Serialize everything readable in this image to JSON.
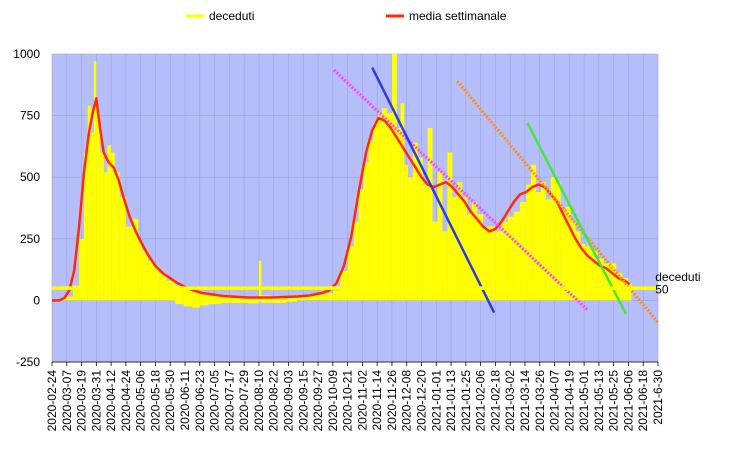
{
  "chart_data": {
    "type": "line",
    "title": "",
    "xlabel": "",
    "ylabel": "",
    "ylim": [
      -250,
      1000
    ],
    "yticks": [
      1000,
      750,
      500,
      250,
      0,
      -250
    ],
    "xlim": [
      "2020-02-24",
      "2021-06-30"
    ],
    "xticks": [
      "2020-02-24",
      "2020-03-07",
      "2020-03-19",
      "2020-03-31",
      "2020-04-12",
      "2020-04-24",
      "2020-05-06",
      "2020-05-18",
      "2020-05-30",
      "2020-06-11",
      "2020-06-23",
      "2020-07-05",
      "2020-07-17",
      "2020-07-29",
      "2020-08-10",
      "2020-08-22",
      "2020-09-03",
      "2020-09-15",
      "2020-09-27",
      "2020-10-09",
      "2020-10-21",
      "2020-11-02",
      "2020-11-14",
      "2020-11-26",
      "2020-12-08",
      "2020-12-20",
      "2021-01-01",
      "2021-01-13",
      "2021-01-25",
      "2021-02-06",
      "2021-02-18",
      "2021-03-02",
      "2021-03-14",
      "2021-03-26",
      "2021-04-07",
      "2021-04-19",
      "2021-05-01",
      "2021-05-13",
      "2021-05-25",
      "2021-06-06",
      "2021-06-18",
      "2021-6-30"
    ],
    "plot_background": "#b6bef9",
    "grid": true,
    "legend_position": "top",
    "legend": [
      {
        "name": "deceduti",
        "color": "#ffff00"
      },
      {
        "name": "media settimanale",
        "color": "#ff2a0a"
      }
    ],
    "series": [
      {
        "name": "deceduti",
        "color": "#ffff00",
        "style": "bars",
        "x": [
          "2020-02-24",
          "2020-03-02",
          "2020-03-07",
          "2020-03-12",
          "2020-03-17",
          "2020-03-21",
          "2020-03-24",
          "2020-03-27",
          "2020-03-29",
          "2020-03-31",
          "2020-04-03",
          "2020-04-06",
          "2020-04-09",
          "2020-04-12",
          "2020-04-15",
          "2020-04-19",
          "2020-04-24",
          "2020-04-29",
          "2020-05-04",
          "2020-05-07",
          "2020-05-12",
          "2020-05-16",
          "2020-05-21",
          "2020-05-27",
          "2020-06-03",
          "2020-06-10",
          "2020-06-17",
          "2020-06-23",
          "2020-06-30",
          "2020-07-10",
          "2020-07-20",
          "2020-08-01",
          "2020-08-10",
          "2020-08-12",
          "2020-08-20",
          "2020-09-01",
          "2020-09-10",
          "2020-09-20",
          "2020-10-01",
          "2020-10-09",
          "2020-10-15",
          "2020-10-21",
          "2020-10-26",
          "2020-10-30",
          "2020-11-03",
          "2020-11-07",
          "2020-11-11",
          "2020-11-15",
          "2020-11-18",
          "2020-11-22",
          "2020-11-26",
          "2020-11-30",
          "2020-12-03",
          "2020-12-06",
          "2020-12-09",
          "2020-12-13",
          "2020-12-17",
          "2020-12-21",
          "2020-12-25",
          "2020-12-29",
          "2021-01-02",
          "2021-01-06",
          "2021-01-10",
          "2021-01-14",
          "2021-01-18",
          "2021-01-22",
          "2021-01-26",
          "2021-01-30",
          "2021-02-03",
          "2021-02-08",
          "2021-02-13",
          "2021-02-18",
          "2021-02-23",
          "2021-02-28",
          "2021-03-05",
          "2021-03-10",
          "2021-03-15",
          "2021-03-19",
          "2021-03-23",
          "2021-03-27",
          "2021-03-31",
          "2021-04-04",
          "2021-04-08",
          "2021-04-12",
          "2021-04-16",
          "2021-04-20",
          "2021-04-24",
          "2021-04-28",
          "2021-05-02",
          "2021-05-07",
          "2021-05-12",
          "2021-05-17",
          "2021-05-22",
          "2021-05-27",
          "2021-06-01",
          "2021-06-06"
        ],
        "values": [
          1,
          5,
          15,
          60,
          250,
          600,
          790,
          680,
          970,
          760,
          600,
          520,
          630,
          600,
          520,
          420,
          300,
          330,
          240,
          200,
          160,
          140,
          110,
          80,
          60,
          50,
          40,
          30,
          25,
          18,
          12,
          15,
          160,
          20,
          10,
          12,
          16,
          22,
          30,
          40,
          120,
          220,
          320,
          450,
          560,
          650,
          720,
          760,
          780,
          760,
          1000,
          700,
          800,
          550,
          500,
          640,
          580,
          470,
          700,
          320,
          520,
          280,
          600,
          420,
          480,
          420,
          350,
          400,
          350,
          300,
          300,
          280,
          320,
          340,
          360,
          400,
          470,
          550,
          440,
          480,
          410,
          500,
          480,
          360,
          380,
          320,
          280,
          230,
          220,
          200,
          170,
          150,
          150,
          110,
          90,
          70
        ],
        "low": [
          0,
          0,
          0,
          0,
          0,
          0,
          0,
          0,
          0,
          0,
          0,
          0,
          0,
          0,
          0,
          0,
          0,
          0,
          0,
          0,
          0,
          0,
          0,
          0,
          -15,
          -25,
          -30,
          -20,
          -15,
          -10,
          -10,
          -12,
          -5,
          -10,
          -10,
          -5,
          0,
          0,
          0,
          0,
          0,
          0,
          0,
          0,
          0,
          0,
          0,
          0,
          0,
          0,
          0,
          0,
          0,
          0,
          0,
          0,
          0,
          0,
          0,
          0,
          0,
          0,
          0,
          0,
          0,
          0,
          0,
          0,
          0,
          0,
          0,
          0,
          0,
          0,
          0,
          0,
          0,
          0,
          0,
          0,
          0,
          0,
          0,
          0,
          0,
          0,
          0,
          0,
          0,
          0,
          0,
          0,
          0,
          0,
          0,
          0
        ]
      },
      {
        "name": "media settimanale",
        "color": "#ff2a0a",
        "style": "line",
        "x": [
          "2020-02-24",
          "2020-03-01",
          "2020-03-05",
          "2020-03-09",
          "2020-03-13",
          "2020-03-17",
          "2020-03-21",
          "2020-03-25",
          "2020-03-28",
          "2020-03-31",
          "2020-04-03",
          "2020-04-06",
          "2020-04-10",
          "2020-04-14",
          "2020-04-18",
          "2020-04-22",
          "2020-04-27",
          "2020-05-02",
          "2020-05-07",
          "2020-05-12",
          "2020-05-18",
          "2020-05-24",
          "2020-05-30",
          "2020-06-05",
          "2020-06-11",
          "2020-06-18",
          "2020-06-25",
          "2020-07-02",
          "2020-07-12",
          "2020-07-22",
          "2020-08-01",
          "2020-08-11",
          "2020-08-21",
          "2020-08-31",
          "2020-09-10",
          "2020-09-20",
          "2020-09-30",
          "2020-10-06",
          "2020-10-12",
          "2020-10-18",
          "2020-10-24",
          "2020-10-30",
          "2020-11-05",
          "2020-11-10",
          "2020-11-15",
          "2020-11-20",
          "2020-11-25",
          "2020-11-30",
          "2020-12-05",
          "2020-12-10",
          "2020-12-15",
          "2020-12-20",
          "2020-12-25",
          "2020-12-30",
          "2021-01-04",
          "2021-01-09",
          "2021-01-14",
          "2021-01-19",
          "2021-01-24",
          "2021-01-29",
          "2021-02-03",
          "2021-02-08",
          "2021-02-13",
          "2021-02-18",
          "2021-02-23",
          "2021-02-28",
          "2021-03-05",
          "2021-03-10",
          "2021-03-15",
          "2021-03-20",
          "2021-03-25",
          "2021-03-30",
          "2021-04-04",
          "2021-04-09",
          "2021-04-14",
          "2021-04-19",
          "2021-04-24",
          "2021-04-29",
          "2021-05-04",
          "2021-05-09",
          "2021-05-14",
          "2021-05-19",
          "2021-05-24",
          "2021-05-29",
          "2021-06-03",
          "2021-06-07"
        ],
        "values": [
          0,
          0,
          10,
          40,
          120,
          300,
          520,
          680,
          760,
          820,
          700,
          600,
          560,
          540,
          490,
          420,
          340,
          280,
          230,
          185,
          140,
          110,
          90,
          70,
          55,
          40,
          30,
          25,
          18,
          15,
          12,
          12,
          12,
          14,
          16,
          20,
          30,
          40,
          70,
          140,
          260,
          440,
          600,
          690,
          740,
          730,
          700,
          660,
          620,
          580,
          540,
          500,
          470,
          460,
          470,
          480,
          460,
          430,
          400,
          360,
          330,
          300,
          280,
          290,
          320,
          360,
          400,
          430,
          440,
          460,
          470,
          460,
          430,
          400,
          350,
          300,
          250,
          210,
          180,
          160,
          140,
          130,
          110,
          90,
          80,
          65
        ]
      },
      {
        "name": "",
        "color": "#ff44ff",
        "style": "dotted-trend",
        "x": [
          "2020-10-10",
          "2021-05-04"
        ],
        "values": [
          935,
          -40
        ]
      },
      {
        "name": "",
        "color": "#2b3de0",
        "style": "trend",
        "x": [
          "2020-11-10",
          "2021-02-17"
        ],
        "values": [
          945,
          -50
        ]
      },
      {
        "name": "",
        "color": "#ff8c1a",
        "style": "dotted-trend",
        "x": [
          "2021-01-18",
          "2021-06-30"
        ],
        "values": [
          890,
          -90
        ]
      },
      {
        "name": "",
        "color": "#3fe83f",
        "style": "trend",
        "x": [
          "2021-03-16",
          "2021-06-04"
        ],
        "values": [
          720,
          -55
        ]
      },
      {
        "name": "",
        "color": "#ffff00",
        "style": "hline",
        "x": [
          "2020-02-24",
          "2021-06-30"
        ],
        "values": [
          50,
          50
        ]
      }
    ],
    "annotations": [
      {
        "text": "deceduti",
        "x": "2021-06-18",
        "y": 70
      },
      {
        "text": "50",
        "x": "2021-06-18",
        "y": 20
      }
    ]
  }
}
